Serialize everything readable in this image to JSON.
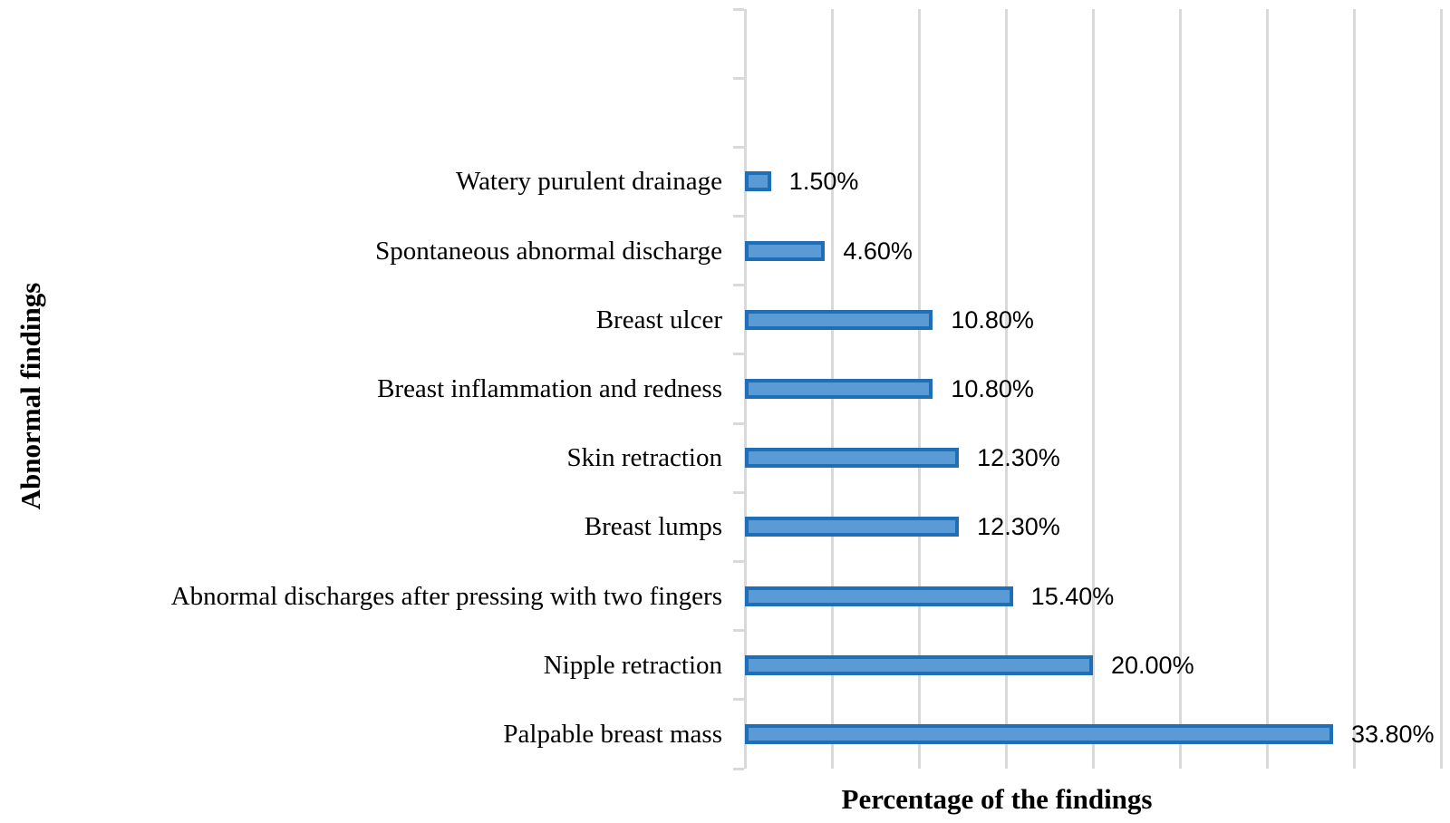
{
  "chart_data": {
    "type": "bar",
    "orientation": "horizontal",
    "title": "",
    "xlabel": "Percentage of the findings",
    "ylabel": "Abnormal findings",
    "categories": [
      "Watery purulent drainage",
      "Spontaneous abnormal discharge",
      "Breast ulcer",
      "Breast inflammation and redness",
      "Skin retraction",
      "Breast lumps",
      "Abnormal discharges after pressing with two fingers",
      "Nipple retraction",
      "Palpable breast mass"
    ],
    "values": [
      1.5,
      4.6,
      10.8,
      10.8,
      12.3,
      12.3,
      15.4,
      20.0,
      33.8
    ],
    "value_labels": [
      "1.50%",
      "4.60%",
      "10.80%",
      "10.80%",
      "12.30%",
      "12.30%",
      "15.40%",
      "20.00%",
      "33.80%"
    ],
    "xlim": [
      0,
      40
    ],
    "gridline_interval": 5,
    "grid": "vertical",
    "legend": "none",
    "empty_bands_top": 2,
    "colors": {
      "bar_fill": "#5b9bd5",
      "bar_border": "#1e6fb8",
      "gridline": "#d9d9d9",
      "axis": "#d9d9d9",
      "text": "#000000",
      "background": "#ffffff"
    }
  }
}
